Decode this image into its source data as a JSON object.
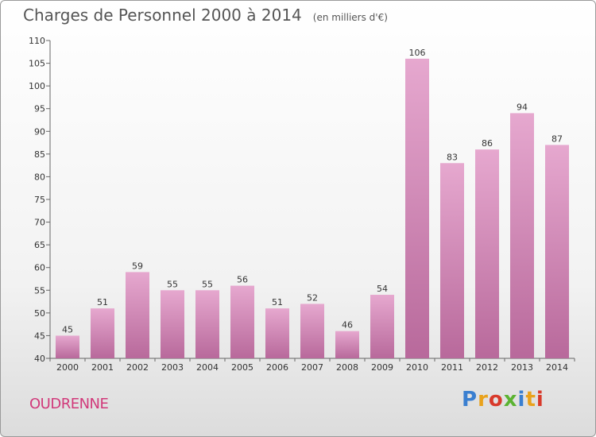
{
  "header": {
    "title": "Charges de Personnel 2000 à 2014",
    "unit": "(en milliers d'€)"
  },
  "footer": {
    "commune": "OUDRENNE",
    "logo": "Proxiti"
  },
  "colors": {
    "bar_top": "#e6a8cf",
    "bar_bottom": "#b8699b",
    "commune_text": "#d1397a"
  },
  "chart_data": {
    "type": "bar",
    "title": "Charges de Personnel 2000 à 2014",
    "subtitle": "(en milliers d'€)",
    "xlabel": "",
    "ylabel": "",
    "categories": [
      "2000",
      "2001",
      "2002",
      "2003",
      "2004",
      "2005",
      "2006",
      "2007",
      "2008",
      "2009",
      "2010",
      "2011",
      "2012",
      "2013",
      "2014"
    ],
    "values": [
      45,
      51,
      59,
      55,
      55,
      56,
      51,
      52,
      46,
      54,
      106,
      83,
      86,
      94,
      87
    ],
    "ylim": [
      40,
      110
    ],
    "yticks": [
      40,
      45,
      50,
      55,
      60,
      65,
      70,
      75,
      80,
      85,
      90,
      95,
      100,
      105,
      110
    ],
    "grid": false,
    "legend": "none"
  }
}
